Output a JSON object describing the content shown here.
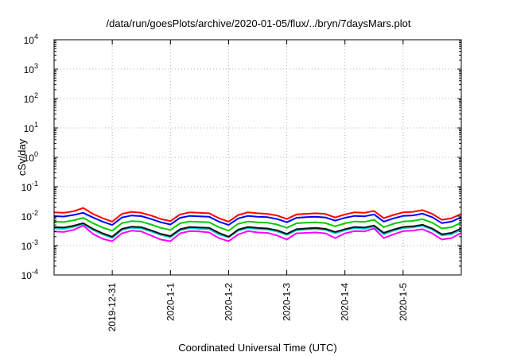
{
  "chart_data": {
    "type": "line",
    "title": "/data/run/goesPlots/archive/2020-01-05/flux/../bryn/7daysMars.plot",
    "xlabel": "Coordinated Universal Time (UTC)",
    "ylabel": "cSv/day",
    "yscale": "log",
    "ylim": [
      0.0001,
      10000
    ],
    "y_ticks": [
      {
        "base": "10",
        "exp": "-4"
      },
      {
        "base": "10",
        "exp": "-3"
      },
      {
        "base": "10",
        "exp": "-2"
      },
      {
        "base": "10",
        "exp": "-1"
      },
      {
        "base": "10",
        "exp": "0"
      },
      {
        "base": "10",
        "exp": "1"
      },
      {
        "base": "10",
        "exp": "2"
      },
      {
        "base": "10",
        "exp": "3"
      },
      {
        "base": "10",
        "exp": "4"
      }
    ],
    "x_range_days": [
      "2019-12-30 00:00",
      "2020-01-06 00:00"
    ],
    "x_ticks": [
      "2019-12-31",
      "2020-1-1",
      "2020-1-2",
      "2020-1-3",
      "2020-1-4",
      "2020-1-5"
    ],
    "grid": true,
    "x_hours": [
      0,
      4,
      8,
      12,
      16,
      20,
      24,
      28,
      32,
      36,
      40,
      44,
      48,
      52,
      56,
      60,
      64,
      68,
      72,
      76,
      80,
      84,
      88,
      92,
      96,
      100,
      104,
      108,
      112,
      116,
      120,
      124,
      128,
      132,
      136,
      140,
      144,
      148,
      152,
      156,
      160,
      164,
      168
    ],
    "series": [
      {
        "color": "#ff0000",
        "values": [
          0.0135,
          0.013,
          0.0145,
          0.019,
          0.012,
          0.0085,
          0.0065,
          0.012,
          0.014,
          0.013,
          0.0105,
          0.008,
          0.0068,
          0.0115,
          0.0135,
          0.013,
          0.0125,
          0.0085,
          0.0065,
          0.011,
          0.0135,
          0.0125,
          0.012,
          0.0105,
          0.008,
          0.0115,
          0.012,
          0.0125,
          0.0118,
          0.009,
          0.0115,
          0.0135,
          0.013,
          0.015,
          0.0085,
          0.011,
          0.0135,
          0.014,
          0.016,
          0.012,
          0.0075,
          0.0085,
          0.012
        ]
      },
      {
        "color": "#0000ff",
        "values": [
          0.01,
          0.0097,
          0.011,
          0.013,
          0.009,
          0.0065,
          0.005,
          0.009,
          0.0105,
          0.01,
          0.008,
          0.0062,
          0.0052,
          0.0088,
          0.0102,
          0.0098,
          0.0095,
          0.0065,
          0.005,
          0.0084,
          0.0102,
          0.0096,
          0.0092,
          0.008,
          0.0062,
          0.0088,
          0.0092,
          0.0095,
          0.009,
          0.007,
          0.0088,
          0.0102,
          0.0098,
          0.0115,
          0.0065,
          0.0084,
          0.0102,
          0.0106,
          0.0122,
          0.0092,
          0.0058,
          0.0065,
          0.0092
        ]
      },
      {
        "color": "#00cc00",
        "values": [
          0.0065,
          0.0063,
          0.0072,
          0.0088,
          0.0058,
          0.0041,
          0.0032,
          0.0058,
          0.0068,
          0.0065,
          0.0052,
          0.004,
          0.0034,
          0.0057,
          0.0066,
          0.0064,
          0.0062,
          0.0042,
          0.0032,
          0.0055,
          0.0066,
          0.0062,
          0.006,
          0.0052,
          0.004,
          0.0057,
          0.006,
          0.0062,
          0.0058,
          0.0045,
          0.0057,
          0.0066,
          0.0064,
          0.0075,
          0.0042,
          0.0055,
          0.0066,
          0.0069,
          0.0079,
          0.006,
          0.0038,
          0.0042,
          0.006
        ]
      },
      {
        "color": "#00cccc",
        "values": [
          0.0038,
          0.0037,
          0.0043,
          0.0054,
          0.0034,
          0.0024,
          0.0018,
          0.0034,
          0.004,
          0.0038,
          0.003,
          0.0023,
          0.0019,
          0.0033,
          0.0039,
          0.0037,
          0.0036,
          0.0024,
          0.0019,
          0.0032,
          0.0039,
          0.0036,
          0.0035,
          0.003,
          0.0023,
          0.0033,
          0.0035,
          0.0036,
          0.0034,
          0.0026,
          0.0033,
          0.0039,
          0.0037,
          0.0044,
          0.0024,
          0.0032,
          0.0039,
          0.0041,
          0.0047,
          0.0035,
          0.0022,
          0.0024,
          0.0035
        ]
      },
      {
        "color": "#111111",
        "values": [
          0.0042,
          0.0041,
          0.0047,
          0.0058,
          0.0037,
          0.0026,
          0.002,
          0.0037,
          0.0044,
          0.0042,
          0.0033,
          0.0025,
          0.0021,
          0.0036,
          0.0043,
          0.0041,
          0.004,
          0.0027,
          0.002,
          0.0035,
          0.0043,
          0.004,
          0.0038,
          0.0033,
          0.0025,
          0.0036,
          0.0038,
          0.004,
          0.0037,
          0.0029,
          0.0036,
          0.0043,
          0.0041,
          0.0048,
          0.0027,
          0.0035,
          0.0043,
          0.0045,
          0.0051,
          0.0038,
          0.0024,
          0.0027,
          0.0038
        ]
      },
      {
        "color": "#ff00ff",
        "values": [
          0.003,
          0.0029,
          0.0034,
          0.0048,
          0.0025,
          0.0017,
          0.0014,
          0.0026,
          0.0032,
          0.003,
          0.0022,
          0.0016,
          0.0014,
          0.0026,
          0.0031,
          0.003,
          0.0028,
          0.0018,
          0.0014,
          0.0024,
          0.0031,
          0.0028,
          0.0027,
          0.0022,
          0.0016,
          0.0026,
          0.0027,
          0.0028,
          0.0026,
          0.0018,
          0.0026,
          0.0031,
          0.003,
          0.0038,
          0.0018,
          0.0024,
          0.0031,
          0.0032,
          0.0036,
          0.0026,
          0.0016,
          0.0018,
          0.0027
        ]
      }
    ]
  }
}
